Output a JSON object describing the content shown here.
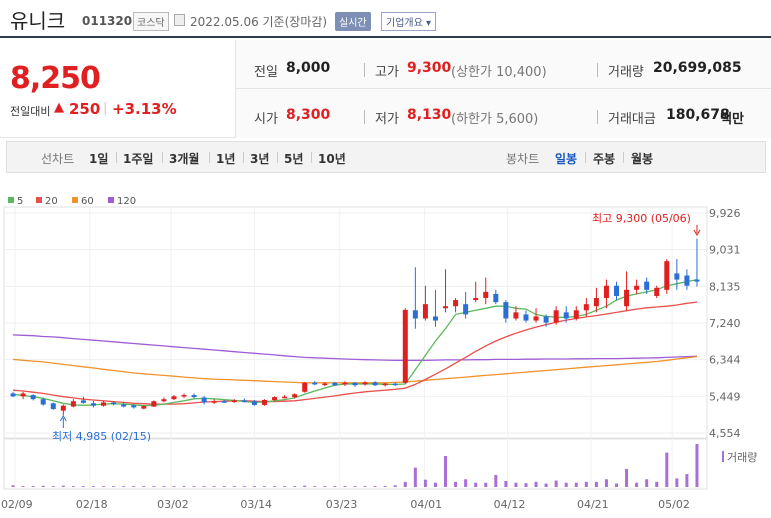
{
  "header": {
    "stock_name": "유니크",
    "stock_code": "011320",
    "market": "코스닥",
    "date_text": "2022.05.06 기준(장마감)",
    "realtime_label": "실시간",
    "overview_label": "기업개요"
  },
  "quote": {
    "price": "8,250",
    "change_label": "전일대비",
    "change_arrow": "▲",
    "change_value": "250",
    "change_sep": "|",
    "change_pct": "+3.13%",
    "prev_close_label": "전일",
    "prev_close": "8,000",
    "high_label": "고가",
    "high": "9,300",
    "upper_limit": "(상한가 10,400)",
    "volume_label": "거래량",
    "volume": "20,699,085",
    "open_label": "시가",
    "open": "8,300",
    "low_label": "저가",
    "low": "8,130",
    "lower_limit": "(하한가 5,600)",
    "value_label": "거래대금",
    "value": "180,678",
    "value_unit": "백만"
  },
  "period_bar": {
    "line_label": "선차트",
    "line_options": [
      "1일",
      "1주일",
      "3개월",
      "1년",
      "3년",
      "5년",
      "10년"
    ],
    "candle_label": "봉차트",
    "candle_options": [
      "일봉",
      "주봉",
      "월봉"
    ],
    "candle_selected": "일봉"
  },
  "colors": {
    "up": "#e02020",
    "down": "#2a6fd6",
    "ma5": "#5cb85c",
    "ma20": "#e8504d",
    "ma60": "#f0932b",
    "ma120": "#a05cd6"
  },
  "chart_data": {
    "type": "candlestick",
    "y_ticks": [
      "9,926",
      "9,031",
      "8,135",
      "7,240",
      "6,344",
      "5,449",
      "4,554"
    ],
    "ylim": [
      4554,
      9926
    ],
    "x_tick_labels": [
      "02/09",
      "02/18",
      "03/02",
      "03/14",
      "03/23",
      "04/01",
      "04/12",
      "04/21",
      "05/02"
    ],
    "legend": [
      {
        "name": "5",
        "color_key": "ma5"
      },
      {
        "name": "20",
        "color_key": "ma20"
      },
      {
        "name": "60",
        "color_key": "ma60"
      },
      {
        "name": "120",
        "color_key": "ma120"
      }
    ],
    "annotations": {
      "high_label": "최고 9,300 (05/06)",
      "low_label": "최저 4,985 (02/15)"
    },
    "volume_label": "거래량",
    "candles": [
      {
        "o": 5520,
        "h": 5560,
        "l": 5430,
        "c": 5450
      },
      {
        "o": 5450,
        "h": 5560,
        "l": 5380,
        "c": 5520
      },
      {
        "o": 5480,
        "h": 5500,
        "l": 5350,
        "c": 5380
      },
      {
        "o": 5380,
        "h": 5420,
        "l": 5220,
        "c": 5250
      },
      {
        "o": 5280,
        "h": 5300,
        "l": 5120,
        "c": 5140
      },
      {
        "o": 5100,
        "h": 5250,
        "l": 4985,
        "c": 5220
      },
      {
        "o": 5200,
        "h": 5380,
        "l": 5180,
        "c": 5330
      },
      {
        "o": 5350,
        "h": 5440,
        "l": 5270,
        "c": 5290
      },
      {
        "o": 5280,
        "h": 5340,
        "l": 5180,
        "c": 5220
      },
      {
        "o": 5220,
        "h": 5330,
        "l": 5200,
        "c": 5300
      },
      {
        "o": 5300,
        "h": 5320,
        "l": 5230,
        "c": 5260
      },
      {
        "o": 5250,
        "h": 5300,
        "l": 5180,
        "c": 5200
      },
      {
        "o": 5230,
        "h": 5260,
        "l": 5150,
        "c": 5180
      },
      {
        "o": 5150,
        "h": 5230,
        "l": 5130,
        "c": 5210
      },
      {
        "o": 5200,
        "h": 5350,
        "l": 5190,
        "c": 5330
      },
      {
        "o": 5330,
        "h": 5420,
        "l": 5300,
        "c": 5380
      },
      {
        "o": 5380,
        "h": 5480,
        "l": 5360,
        "c": 5450
      },
      {
        "o": 5450,
        "h": 5520,
        "l": 5410,
        "c": 5480
      },
      {
        "o": 5480,
        "h": 5520,
        "l": 5400,
        "c": 5430
      },
      {
        "o": 5420,
        "h": 5460,
        "l": 5250,
        "c": 5300
      },
      {
        "o": 5300,
        "h": 5380,
        "l": 5260,
        "c": 5330
      },
      {
        "o": 5330,
        "h": 5360,
        "l": 5290,
        "c": 5310
      },
      {
        "o": 5310,
        "h": 5380,
        "l": 5290,
        "c": 5350
      },
      {
        "o": 5350,
        "h": 5400,
        "l": 5300,
        "c": 5320
      },
      {
        "o": 5320,
        "h": 5360,
        "l": 5220,
        "c": 5240
      },
      {
        "o": 5240,
        "h": 5380,
        "l": 5220,
        "c": 5360
      },
      {
        "o": 5360,
        "h": 5450,
        "l": 5340,
        "c": 5430
      },
      {
        "o": 5430,
        "h": 5480,
        "l": 5400,
        "c": 5440
      },
      {
        "o": 5430,
        "h": 5520,
        "l": 5400,
        "c": 5500
      },
      {
        "o": 5560,
        "h": 5800,
        "l": 5540,
        "c": 5780
      },
      {
        "o": 5780,
        "h": 5820,
        "l": 5720,
        "c": 5740
      },
      {
        "o": 5740,
        "h": 5800,
        "l": 5700,
        "c": 5760
      },
      {
        "o": 5780,
        "h": 5800,
        "l": 5700,
        "c": 5720
      },
      {
        "o": 5740,
        "h": 5820,
        "l": 5700,
        "c": 5780
      },
      {
        "o": 5780,
        "h": 5800,
        "l": 5680,
        "c": 5720
      },
      {
        "o": 5740,
        "h": 5820,
        "l": 5710,
        "c": 5790
      },
      {
        "o": 5790,
        "h": 5820,
        "l": 5700,
        "c": 5720
      },
      {
        "o": 5720,
        "h": 5780,
        "l": 5690,
        "c": 5760
      },
      {
        "o": 5760,
        "h": 5790,
        "l": 5700,
        "c": 5730
      },
      {
        "o": 5780,
        "h": 7600,
        "l": 5760,
        "c": 7560
      },
      {
        "o": 7550,
        "h": 8600,
        "l": 7100,
        "c": 7350
      },
      {
        "o": 7350,
        "h": 8150,
        "l": 7300,
        "c": 7700
      },
      {
        "o": 7400,
        "h": 8050,
        "l": 7150,
        "c": 7300
      },
      {
        "o": 7600,
        "h": 8550,
        "l": 7500,
        "c": 7650
      },
      {
        "o": 7650,
        "h": 7850,
        "l": 7500,
        "c": 7800
      },
      {
        "o": 7700,
        "h": 8000,
        "l": 7350,
        "c": 7450
      },
      {
        "o": 7800,
        "h": 8250,
        "l": 7750,
        "c": 7850
      },
      {
        "o": 7850,
        "h": 8350,
        "l": 7700,
        "c": 8000
      },
      {
        "o": 7950,
        "h": 8050,
        "l": 7700,
        "c": 7750
      },
      {
        "o": 7750,
        "h": 7800,
        "l": 7250,
        "c": 7350
      },
      {
        "o": 7350,
        "h": 7650,
        "l": 7300,
        "c": 7500
      },
      {
        "o": 7450,
        "h": 7550,
        "l": 7250,
        "c": 7300
      },
      {
        "o": 7300,
        "h": 7600,
        "l": 7250,
        "c": 7400
      },
      {
        "o": 7400,
        "h": 7450,
        "l": 7150,
        "c": 7250
      },
      {
        "o": 7250,
        "h": 7650,
        "l": 7200,
        "c": 7550
      },
      {
        "o": 7500,
        "h": 7650,
        "l": 7250,
        "c": 7350
      },
      {
        "o": 7350,
        "h": 7650,
        "l": 7300,
        "c": 7550
      },
      {
        "o": 7550,
        "h": 7850,
        "l": 7400,
        "c": 7700
      },
      {
        "o": 7650,
        "h": 8100,
        "l": 7500,
        "c": 7850
      },
      {
        "o": 7850,
        "h": 8300,
        "l": 7600,
        "c": 8150
      },
      {
        "o": 8150,
        "h": 8250,
        "l": 7800,
        "c": 7900
      },
      {
        "o": 7650,
        "h": 8500,
        "l": 7550,
        "c": 8050
      },
      {
        "o": 8050,
        "h": 8300,
        "l": 7950,
        "c": 8150
      },
      {
        "o": 8250,
        "h": 8350,
        "l": 7950,
        "c": 8050
      },
      {
        "o": 7900,
        "h": 8150,
        "l": 7850,
        "c": 8100
      },
      {
        "o": 8050,
        "h": 8800,
        "l": 7950,
        "c": 8750
      },
      {
        "o": 8450,
        "h": 8800,
        "l": 8050,
        "c": 8300
      },
      {
        "o": 8400,
        "h": 8550,
        "l": 8050,
        "c": 8150
      },
      {
        "o": 8300,
        "h": 9300,
        "l": 8130,
        "c": 8250
      }
    ],
    "volumes": [
      0.04,
      0.02,
      0.02,
      0.03,
      0.02,
      0.03,
      0.02,
      0.02,
      0.02,
      0.02,
      0.02,
      0.02,
      0.02,
      0.02,
      0.02,
      0.02,
      0.02,
      0.02,
      0.02,
      0.02,
      0.02,
      0.02,
      0.02,
      0.02,
      0.02,
      0.02,
      0.02,
      0.02,
      0.02,
      0.03,
      0.02,
      0.02,
      0.02,
      0.02,
      0.02,
      0.02,
      0.02,
      0.02,
      0.04,
      0.12,
      0.45,
      0.17,
      0.1,
      0.72,
      0.12,
      0.18,
      0.1,
      0.1,
      0.28,
      0.14,
      0.1,
      0.09,
      0.12,
      0.08,
      0.15,
      0.1,
      0.1,
      0.12,
      0.12,
      0.18,
      0.08,
      0.42,
      0.1,
      0.18,
      0.12,
      0.8,
      0.2,
      0.3,
      1.0
    ],
    "ma_lines": {
      "ma5": [
        5500,
        5470,
        5440,
        5400,
        5340,
        5280,
        5240,
        5230,
        5240,
        5260,
        5270,
        5260,
        5240,
        5220,
        5230,
        5260,
        5300,
        5340,
        5390,
        5400,
        5390,
        5370,
        5350,
        5320,
        5300,
        5310,
        5340,
        5370,
        5410,
        5500,
        5580,
        5650,
        5720,
        5750,
        5750,
        5750,
        5750,
        5740,
        5740,
        5750,
        6100,
        6450,
        6800,
        7100,
        7450,
        7500,
        7550,
        7600,
        7650,
        7650,
        7600,
        7580,
        7450,
        7400,
        7380,
        7380,
        7400,
        7450,
        7550,
        7650,
        7800,
        7900,
        7950,
        8000,
        8050,
        8150,
        8200,
        8250,
        8300
      ],
      "ma20": [
        5600,
        5580,
        5550,
        5520,
        5480,
        5440,
        5410,
        5380,
        5360,
        5340,
        5320,
        5300,
        5280,
        5270,
        5260,
        5260,
        5260,
        5270,
        5290,
        5310,
        5320,
        5330,
        5340,
        5340,
        5330,
        5320,
        5320,
        5330,
        5340,
        5370,
        5400,
        5430,
        5460,
        5500,
        5530,
        5560,
        5580,
        5600,
        5620,
        5650,
        5740,
        5860,
        5990,
        6120,
        6260,
        6400,
        6550,
        6680,
        6800,
        6900,
        6990,
        7070,
        7140,
        7200,
        7260,
        7310,
        7350,
        7390,
        7420,
        7460,
        7500,
        7540,
        7580,
        7610,
        7630,
        7650,
        7680,
        7720,
        7750
      ],
      "ma60": [
        6350,
        6330,
        6310,
        6290,
        6260,
        6230,
        6200,
        6170,
        6140,
        6110,
        6080,
        6050,
        6020,
        6000,
        5980,
        5960,
        5940,
        5920,
        5900,
        5880,
        5870,
        5860,
        5850,
        5840,
        5830,
        5820,
        5810,
        5800,
        5790,
        5780,
        5780,
        5780,
        5780,
        5780,
        5780,
        5780,
        5780,
        5780,
        5790,
        5800,
        5820,
        5840,
        5860,
        5880,
        5900,
        5920,
        5940,
        5960,
        5980,
        6000,
        6020,
        6040,
        6060,
        6080,
        6100,
        6120,
        6140,
        6160,
        6180,
        6200,
        6220,
        6240,
        6260,
        6280,
        6300,
        6330,
        6360,
        6390,
        6420
      ],
      "ma120": [
        6950,
        6940,
        6930,
        6910,
        6900,
        6880,
        6860,
        6840,
        6820,
        6800,
        6780,
        6760,
        6740,
        6720,
        6700,
        6680,
        6660,
        6640,
        6620,
        6600,
        6580,
        6560,
        6540,
        6520,
        6500,
        6480,
        6460,
        6440,
        6420,
        6400,
        6390,
        6380,
        6370,
        6360,
        6350,
        6345,
        6340,
        6335,
        6330,
        6330,
        6330,
        6330,
        6335,
        6340,
        6340,
        6340,
        6345,
        6345,
        6350,
        6350,
        6350,
        6355,
        6355,
        6360,
        6360,
        6360,
        6365,
        6365,
        6370,
        6370,
        6370,
        6375,
        6380,
        6385,
        6390,
        6400,
        6410,
        6420,
        6430
      ]
    }
  }
}
